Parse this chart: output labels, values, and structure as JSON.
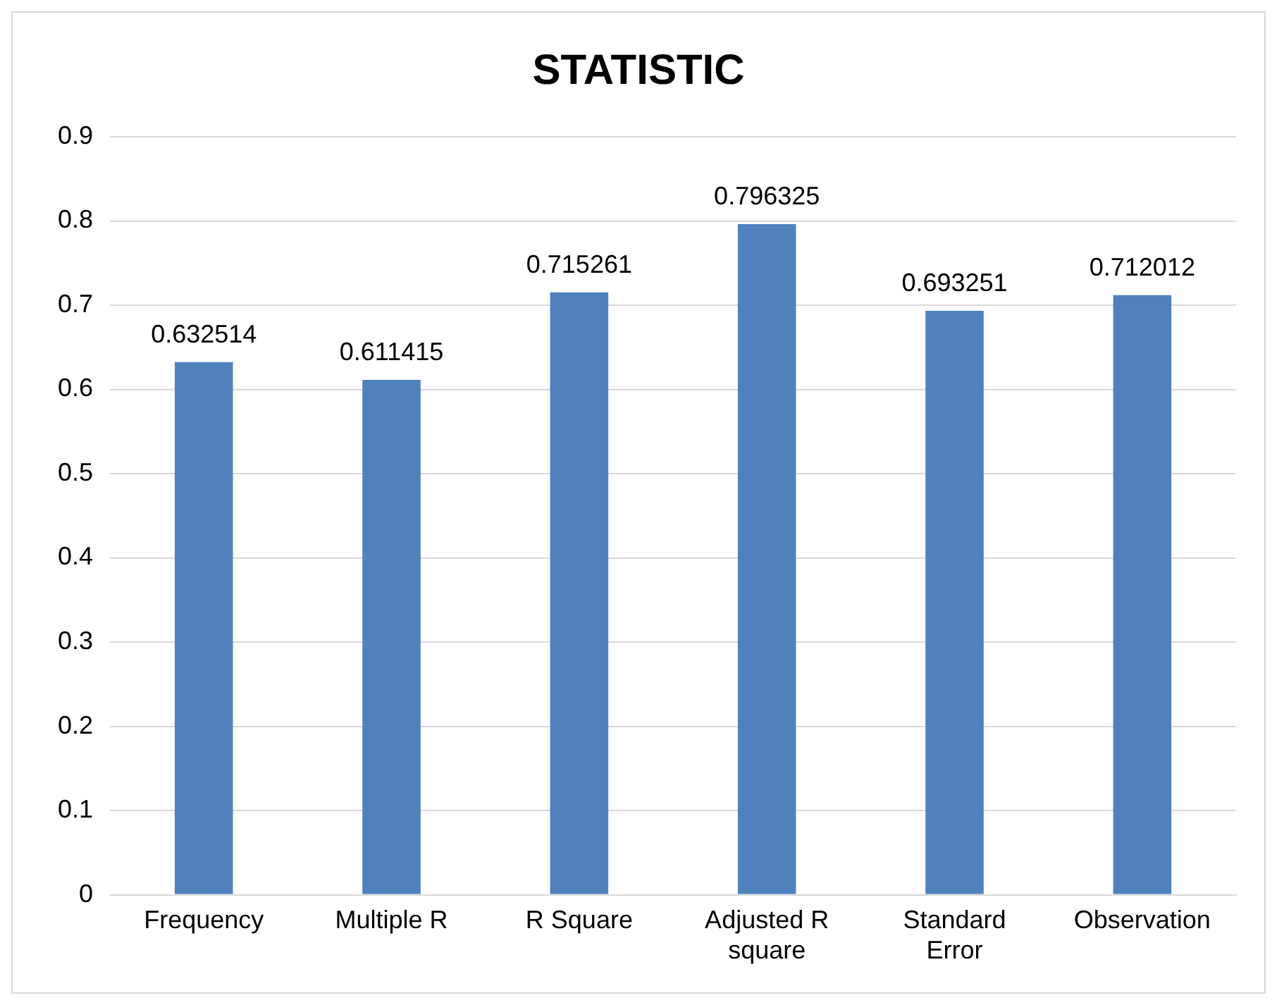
{
  "chart_data": {
    "type": "bar",
    "title": "STATISTIC",
    "categories": [
      "Frequency",
      "Multiple R",
      "R Square",
      "Adjusted R square",
      "Standard Error",
      "Observation"
    ],
    "values": [
      0.632514,
      0.611415,
      0.715261,
      0.796325,
      0.693251,
      0.712012
    ],
    "color": "#4f81bd",
    "ylim": [
      0,
      0.9
    ],
    "yticks": [
      0,
      0.1,
      0.2,
      0.3,
      0.4,
      0.5,
      0.6,
      0.7,
      0.8,
      0.9
    ],
    "grid": "y",
    "legend": false,
    "data_labels": true
  }
}
